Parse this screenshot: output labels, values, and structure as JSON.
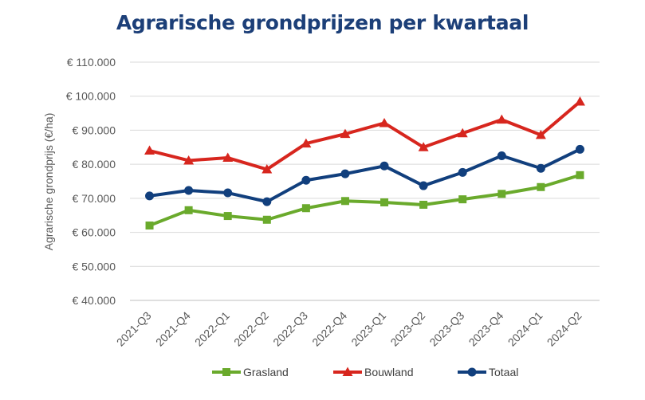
{
  "chart_data": {
    "type": "line",
    "title": "Agrarische grondprijzen per kwartaal",
    "xlabel": "",
    "ylabel": "Agrarische grondprijs (€/ha)",
    "ylim": [
      40000,
      110000
    ],
    "yticks": [
      40000,
      50000,
      60000,
      70000,
      80000,
      90000,
      100000,
      110000
    ],
    "ytick_labels": [
      "€ 40.000",
      "€ 50.000",
      "€ 60.000",
      "€ 70.000",
      "€ 80.000",
      "€ 90.000",
      "€ 100.000",
      "€ 110.000"
    ],
    "grid": true,
    "legend_position": "bottom",
    "categories": [
      "2021-Q3",
      "2021-Q4",
      "2022-Q1",
      "2022-Q2",
      "2022-Q3",
      "2022-Q4",
      "2023-Q1",
      "2023-Q2",
      "2023-Q3",
      "2023-Q4",
      "2024-Q1",
      "2024-Q2"
    ],
    "series": [
      {
        "name": "Grasland",
        "color": "#6aaa2c",
        "marker": "square",
        "values": [
          62000,
          66500,
          64800,
          63700,
          67100,
          69200,
          68800,
          68100,
          69700,
          71300,
          73300,
          76800
        ]
      },
      {
        "name": "Bouwland",
        "color": "#d7261e",
        "marker": "triangle",
        "values": [
          84000,
          81100,
          81900,
          78500,
          86100,
          88900,
          92100,
          85000,
          89100,
          93100,
          88600,
          98400
        ]
      },
      {
        "name": "Totaal",
        "color": "#113f7d",
        "marker": "circle",
        "values": [
          70700,
          72300,
          71600,
          69000,
          75300,
          77200,
          79500,
          73700,
          77600,
          82500,
          78800,
          84400
        ]
      }
    ]
  }
}
